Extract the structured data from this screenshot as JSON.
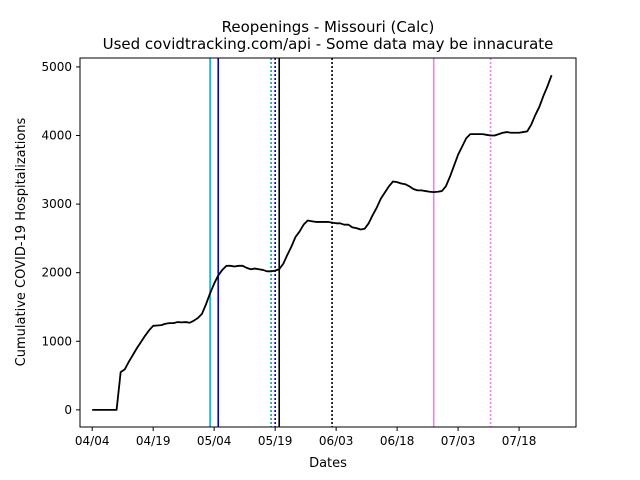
{
  "chart_data": {
    "type": "line",
    "title": "Reopenings - Missouri (Calc)",
    "subtitle": "Used covidtracking.com/api - Some data may be innacurate",
    "xlabel": "Dates",
    "ylabel": "Cumulative COVID-19 Hospitalizations",
    "x_start": "2020-04-04",
    "xlim": [
      "2020-04-01",
      "2020-08-01"
    ],
    "ylim": [
      -250,
      5130
    ],
    "x_ticks": [
      {
        "label": "04/04",
        "date": "2020-04-04"
      },
      {
        "label": "04/19",
        "date": "2020-04-19"
      },
      {
        "label": "05/04",
        "date": "2020-05-04"
      },
      {
        "label": "05/19",
        "date": "2020-05-19"
      },
      {
        "label": "06/03",
        "date": "2020-06-03"
      },
      {
        "label": "06/18",
        "date": "2020-06-18"
      },
      {
        "label": "07/03",
        "date": "2020-07-03"
      },
      {
        "label": "07/18",
        "date": "2020-07-18"
      }
    ],
    "y_ticks": [
      0,
      1000,
      2000,
      3000,
      4000,
      5000
    ],
    "grid": false,
    "series": [
      {
        "color": "#000000",
        "points": [
          [
            "2020-04-04",
            0
          ],
          [
            "2020-04-05",
            0
          ],
          [
            "2020-04-06",
            0
          ],
          [
            "2020-04-07",
            0
          ],
          [
            "2020-04-08",
            0
          ],
          [
            "2020-04-09",
            0
          ],
          [
            "2020-04-10",
            0
          ],
          [
            "2020-04-11",
            550
          ],
          [
            "2020-04-12",
            590
          ],
          [
            "2020-04-13",
            700
          ],
          [
            "2020-04-14",
            800
          ],
          [
            "2020-04-15",
            900
          ],
          [
            "2020-04-16",
            990
          ],
          [
            "2020-04-17",
            1080
          ],
          [
            "2020-04-18",
            1160
          ],
          [
            "2020-04-19",
            1225
          ],
          [
            "2020-04-20",
            1230
          ],
          [
            "2020-04-21",
            1235
          ],
          [
            "2020-04-22",
            1255
          ],
          [
            "2020-04-23",
            1265
          ],
          [
            "2020-04-24",
            1265
          ],
          [
            "2020-04-25",
            1280
          ],
          [
            "2020-04-26",
            1275
          ],
          [
            "2020-04-27",
            1280
          ],
          [
            "2020-04-28",
            1270
          ],
          [
            "2020-04-29",
            1300
          ],
          [
            "2020-04-30",
            1340
          ],
          [
            "2020-05-01",
            1400
          ],
          [
            "2020-05-02",
            1540
          ],
          [
            "2020-05-03",
            1700
          ],
          [
            "2020-05-04",
            1840
          ],
          [
            "2020-05-05",
            1960
          ],
          [
            "2020-05-06",
            2040
          ],
          [
            "2020-05-07",
            2100
          ],
          [
            "2020-05-08",
            2100
          ],
          [
            "2020-05-09",
            2090
          ],
          [
            "2020-05-10",
            2100
          ],
          [
            "2020-05-11",
            2100
          ],
          [
            "2020-05-12",
            2070
          ],
          [
            "2020-05-13",
            2050
          ],
          [
            "2020-05-14",
            2060
          ],
          [
            "2020-05-15",
            2050
          ],
          [
            "2020-05-16",
            2040
          ],
          [
            "2020-05-17",
            2020
          ],
          [
            "2020-05-18",
            2020
          ],
          [
            "2020-05-19",
            2030
          ],
          [
            "2020-05-20",
            2050
          ],
          [
            "2020-05-21",
            2130
          ],
          [
            "2020-05-22",
            2260
          ],
          [
            "2020-05-23",
            2380
          ],
          [
            "2020-05-24",
            2520
          ],
          [
            "2020-05-25",
            2600
          ],
          [
            "2020-05-26",
            2700
          ],
          [
            "2020-05-27",
            2760
          ],
          [
            "2020-05-28",
            2750
          ],
          [
            "2020-05-29",
            2740
          ],
          [
            "2020-05-30",
            2740
          ],
          [
            "2020-05-31",
            2740
          ],
          [
            "2020-06-01",
            2740
          ],
          [
            "2020-06-02",
            2730
          ],
          [
            "2020-06-03",
            2720
          ],
          [
            "2020-06-04",
            2720
          ],
          [
            "2020-06-05",
            2700
          ],
          [
            "2020-06-06",
            2700
          ],
          [
            "2020-06-07",
            2660
          ],
          [
            "2020-06-08",
            2650
          ],
          [
            "2020-06-09",
            2630
          ],
          [
            "2020-06-10",
            2640
          ],
          [
            "2020-06-11",
            2720
          ],
          [
            "2020-06-12",
            2840
          ],
          [
            "2020-06-13",
            2950
          ],
          [
            "2020-06-14",
            3080
          ],
          [
            "2020-06-15",
            3170
          ],
          [
            "2020-06-16",
            3260
          ],
          [
            "2020-06-17",
            3330
          ],
          [
            "2020-06-18",
            3320
          ],
          [
            "2020-06-19",
            3300
          ],
          [
            "2020-06-20",
            3290
          ],
          [
            "2020-06-21",
            3260
          ],
          [
            "2020-06-22",
            3220
          ],
          [
            "2020-06-23",
            3200
          ],
          [
            "2020-06-24",
            3200
          ],
          [
            "2020-06-25",
            3190
          ],
          [
            "2020-06-26",
            3180
          ],
          [
            "2020-06-27",
            3175
          ],
          [
            "2020-06-28",
            3180
          ],
          [
            "2020-06-29",
            3190
          ],
          [
            "2020-06-30",
            3260
          ],
          [
            "2020-07-01",
            3400
          ],
          [
            "2020-07-02",
            3560
          ],
          [
            "2020-07-03",
            3720
          ],
          [
            "2020-07-04",
            3840
          ],
          [
            "2020-07-05",
            3960
          ],
          [
            "2020-07-06",
            4020
          ],
          [
            "2020-07-07",
            4020
          ],
          [
            "2020-07-08",
            4020
          ],
          [
            "2020-07-09",
            4020
          ],
          [
            "2020-07-10",
            4010
          ],
          [
            "2020-07-11",
            4000
          ],
          [
            "2020-07-12",
            4000
          ],
          [
            "2020-07-13",
            4020
          ],
          [
            "2020-07-14",
            4040
          ],
          [
            "2020-07-15",
            4050
          ],
          [
            "2020-07-16",
            4040
          ],
          [
            "2020-07-17",
            4040
          ],
          [
            "2020-07-18",
            4040
          ],
          [
            "2020-07-19",
            4050
          ],
          [
            "2020-07-20",
            4060
          ],
          [
            "2020-07-21",
            4160
          ],
          [
            "2020-07-22",
            4300
          ],
          [
            "2020-07-23",
            4420
          ],
          [
            "2020-07-24",
            4580
          ],
          [
            "2020-07-25",
            4720
          ],
          [
            "2020-07-26",
            4880
          ]
        ]
      }
    ],
    "vertical_lines": [
      {
        "date": "2020-05-03",
        "color": "#00b0e0",
        "style": "solid"
      },
      {
        "date": "2020-05-05",
        "color": "#0000cc",
        "style": "solid"
      },
      {
        "date": "2020-05-18",
        "color": "#00aa88",
        "style": "dotted"
      },
      {
        "date": "2020-05-19",
        "color": "#0000cc",
        "style": "dotted"
      },
      {
        "date": "2020-05-20",
        "color": "#000000",
        "style": "solid"
      },
      {
        "date": "2020-06-02",
        "color": "#000000",
        "style": "dotted"
      },
      {
        "date": "2020-06-27",
        "color": "#ee82ee",
        "style": "solid"
      },
      {
        "date": "2020-07-11",
        "color": "#ee82ee",
        "style": "dotted"
      }
    ]
  }
}
